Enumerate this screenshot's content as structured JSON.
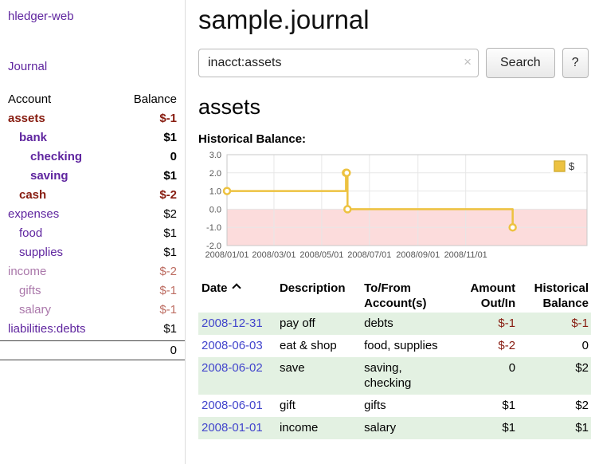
{
  "app_title": "hledger-web",
  "sidebar": {
    "journal_link": "Journal",
    "header": {
      "account": "Account",
      "balance": "Balance"
    },
    "accounts": [
      {
        "name": "assets",
        "balance": "$-1"
      },
      {
        "name": "bank",
        "balance": "$1"
      },
      {
        "name": "checking",
        "balance": "0"
      },
      {
        "name": "saving",
        "balance": "$1"
      },
      {
        "name": "cash",
        "balance": "$-2"
      },
      {
        "name": "expenses",
        "balance": "$2"
      },
      {
        "name": "food",
        "balance": "$1"
      },
      {
        "name": "supplies",
        "balance": "$1"
      },
      {
        "name": "income",
        "balance": "$-2"
      },
      {
        "name": "gifts",
        "balance": "$-1"
      },
      {
        "name": "salary",
        "balance": "$-1"
      },
      {
        "name": "liabilities:debts",
        "balance": "$1"
      }
    ],
    "total": "0"
  },
  "main": {
    "title": "sample.journal",
    "search": {
      "value": "inacct:assets",
      "clear": "×",
      "button": "Search",
      "help": "?"
    },
    "account_heading": "assets",
    "chart_title": "Historical Balance:"
  },
  "register": {
    "sort": {
      "column": "Date",
      "direction": "ascending",
      "icon": "up-chevron"
    },
    "headers": {
      "date": "Date",
      "description": "Description",
      "accounts": "To/From Account(s)",
      "amount": "Amount Out/In",
      "balance": "Historical Balance"
    },
    "rows": [
      {
        "date": "2008-12-31",
        "description": "pay off",
        "accounts": "debts",
        "amount": "$-1",
        "balance": "$-1"
      },
      {
        "date": "2008-06-03",
        "description": "eat & shop",
        "accounts": "food, supplies",
        "amount": "$-2",
        "balance": "0"
      },
      {
        "date": "2008-06-02",
        "description": "save",
        "accounts": "saving,\nchecking",
        "amount": "0",
        "balance": "$2"
      },
      {
        "date": "2008-06-01",
        "description": "gift",
        "accounts": "gifts",
        "amount": "$1",
        "balance": "$2"
      },
      {
        "date": "2008-01-01",
        "description": "income",
        "accounts": "salary",
        "amount": "$1",
        "balance": "$1"
      }
    ]
  },
  "chart_data": {
    "type": "line",
    "steps": true,
    "title": "Historical Balance:",
    "series": [
      {
        "name": "$",
        "color": "#edc240",
        "points": [
          {
            "date": "2008-01-01",
            "x": 0,
            "y": 1
          },
          {
            "date": "2008-06-01",
            "x": 152,
            "y": 2
          },
          {
            "date": "2008-06-02",
            "x": 153,
            "y": 2
          },
          {
            "date": "2008-06-03",
            "x": 154,
            "y": 0
          },
          {
            "date": "2008-12-31",
            "x": 365,
            "y": -1
          }
        ]
      }
    ],
    "xticks": [
      {
        "v": 0,
        "label": "2008/01/01"
      },
      {
        "v": 60,
        "label": "2008/03/01"
      },
      {
        "v": 121,
        "label": "2008/05/01"
      },
      {
        "v": 182,
        "label": "2008/07/01"
      },
      {
        "v": 244,
        "label": "2008/09/01"
      },
      {
        "v": 305,
        "label": "2008/11/01"
      }
    ],
    "yticks": [
      {
        "v": 3,
        "label": "3.0"
      },
      {
        "v": 2,
        "label": "2.0"
      },
      {
        "v": 1,
        "label": "1.0"
      },
      {
        "v": 0,
        "label": "0.0"
      },
      {
        "v": -1,
        "label": "-1.0"
      },
      {
        "v": -2,
        "label": "-2.0"
      }
    ],
    "xlim": [
      0,
      460
    ],
    "ylim": [
      -2,
      3
    ],
    "grid": true,
    "negative_region_color": "#fcdcdc",
    "legend": {
      "label": "$",
      "position": "top-right"
    }
  },
  "colors": {
    "link_purple": "#5f259f",
    "link_purple_dim": "#aa77aa",
    "date_link_blue": "#4245cc",
    "negative_red": "#871c10",
    "negative_red_muted": "#bd6d62",
    "stripe_green": "#e3f1e2",
    "series_gold": "#edc240",
    "negative_region_pink": "#fcdcdc"
  }
}
